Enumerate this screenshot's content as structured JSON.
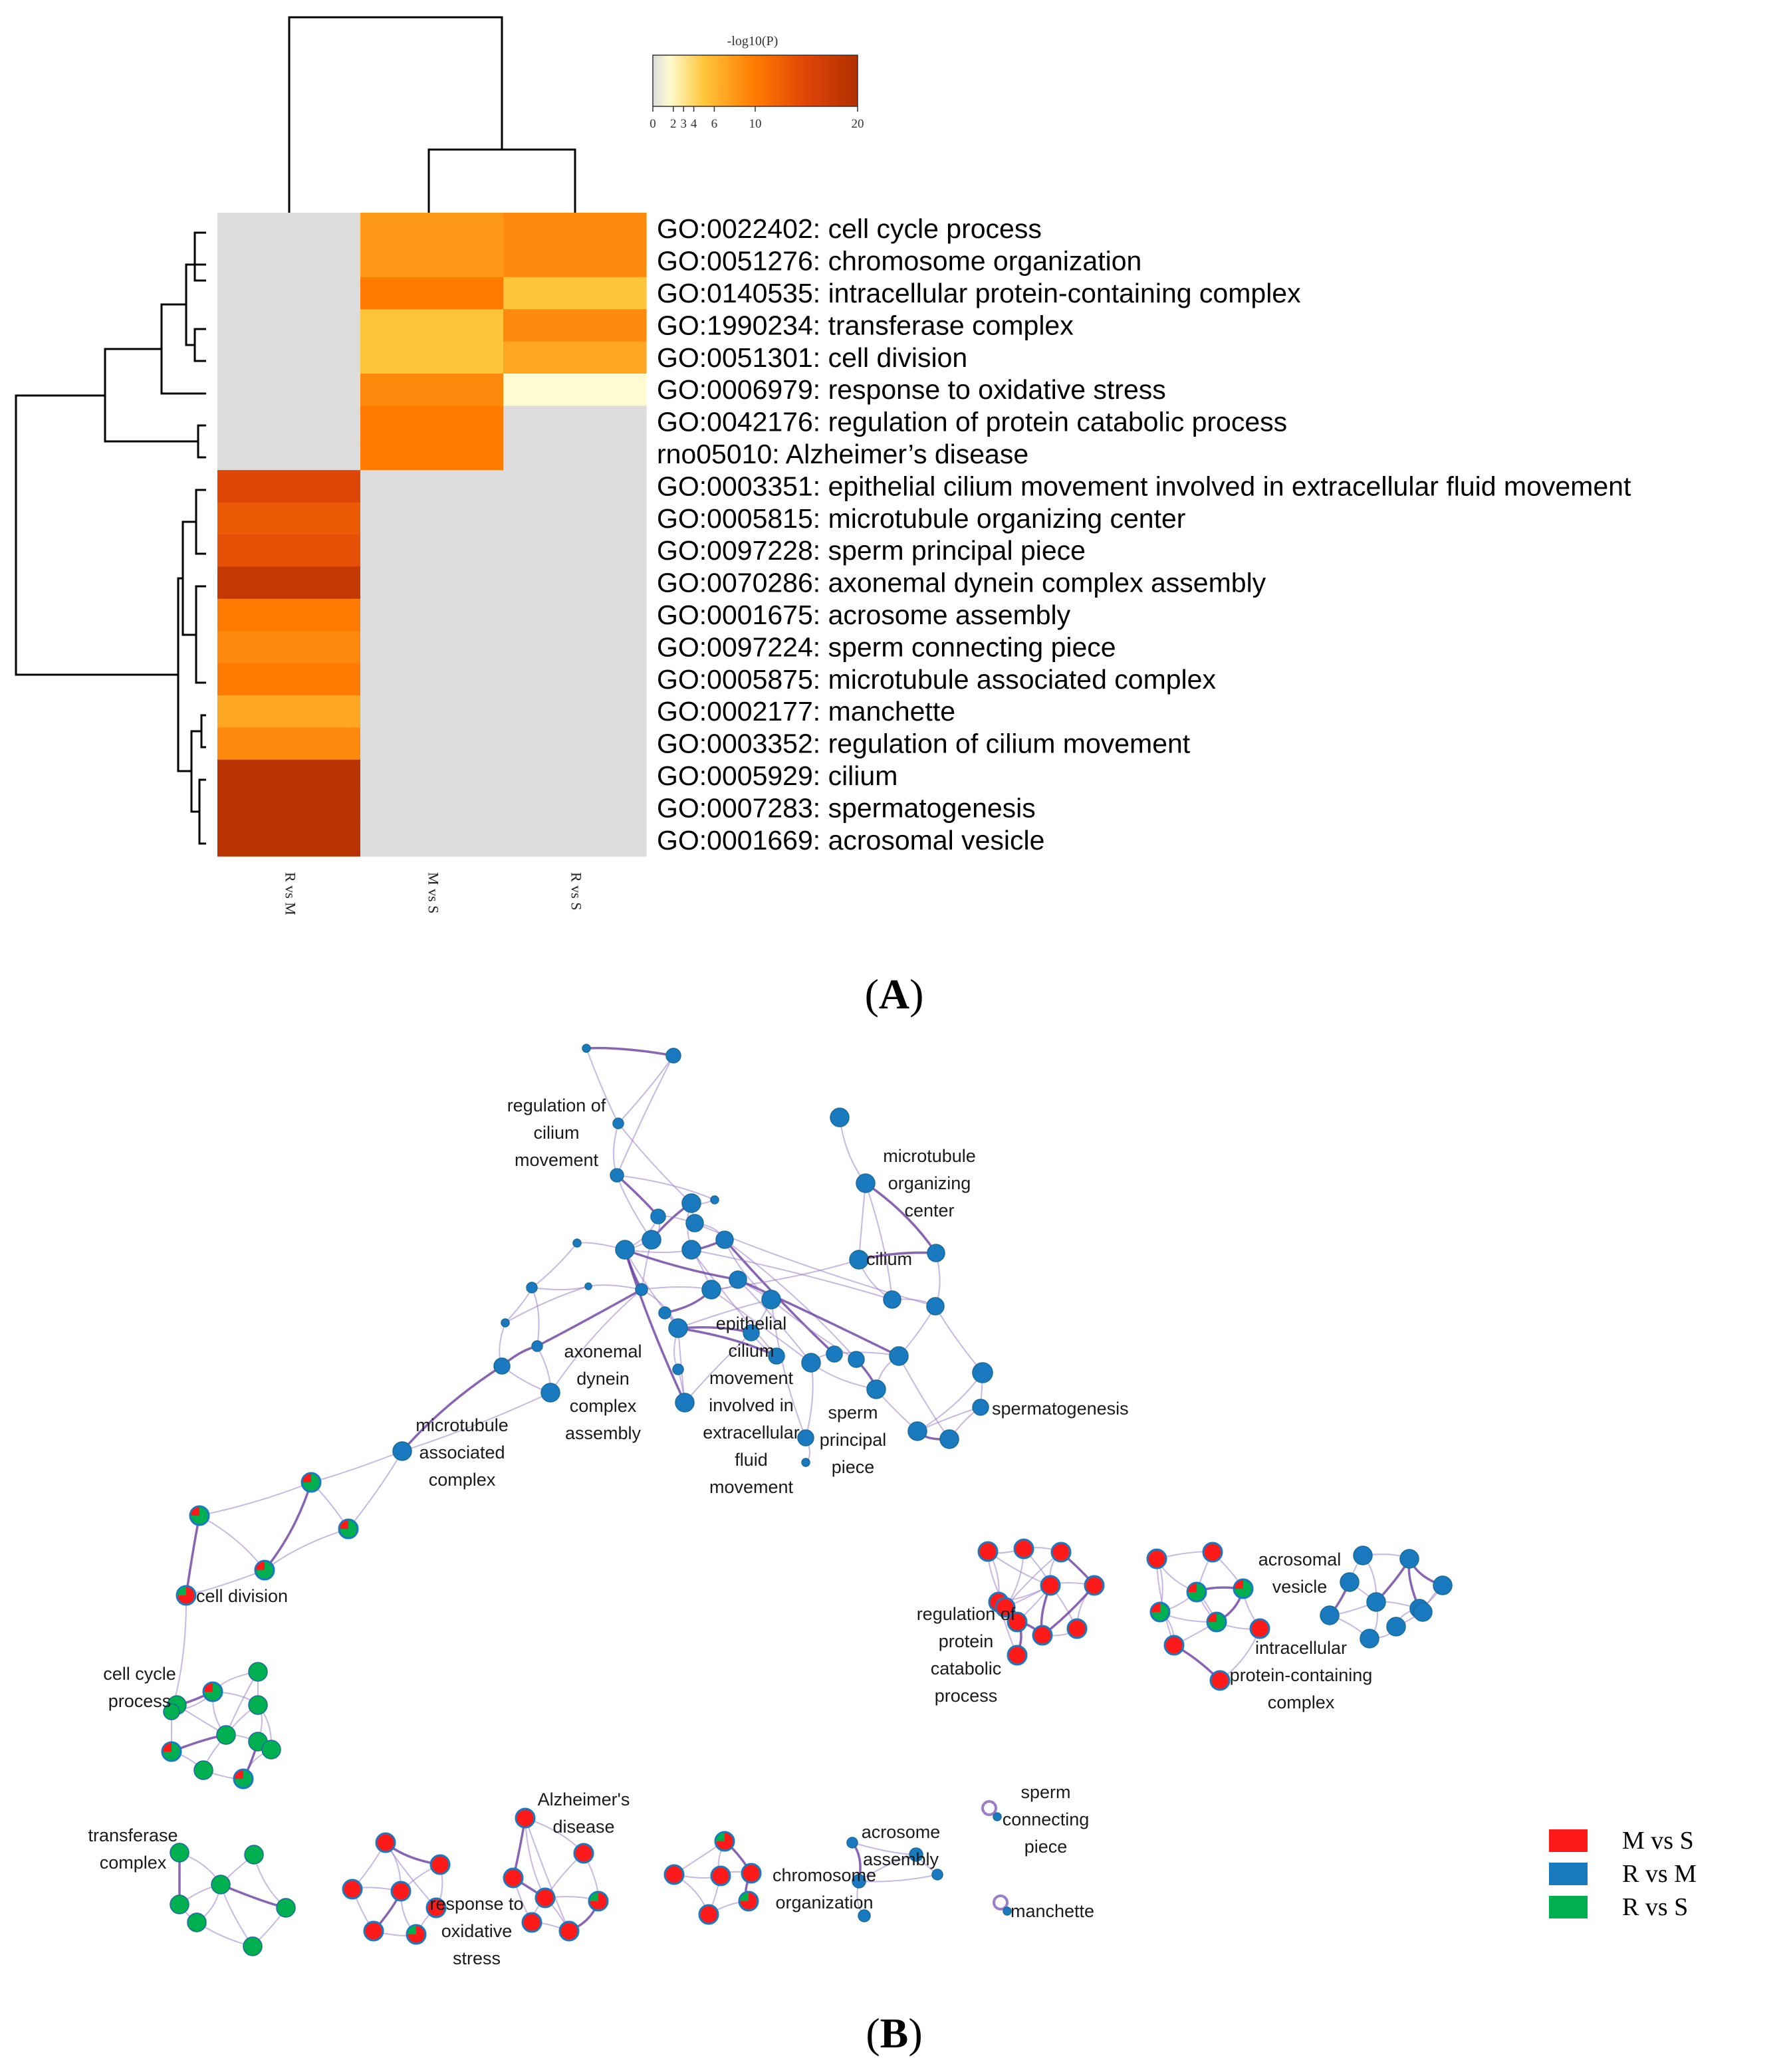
{
  "panels": {
    "a_label": "A",
    "b_label": "B"
  },
  "chart_data": [
    {
      "type": "heatmap",
      "title": "",
      "colorbar": {
        "title": "-log10(P)",
        "ticks": [
          "0",
          "2",
          "3",
          "4",
          "6",
          "10",
          "20"
        ],
        "range": [
          0,
          20
        ]
      },
      "columns": [
        "R vs M",
        "M vs S",
        "R vs S"
      ],
      "rows": [
        "GO:0022402: cell cycle process",
        "GO:0051276: chromosome organization",
        "GO:0140535: intracellular protein-containing complex",
        "GO:1990234: transferase complex",
        "GO:0051301: cell division",
        "GO:0006979: response to oxidative stress",
        "GO:0042176: regulation of protein catabolic process",
        "rno05010: Alzheimer’s disease",
        "GO:0003351: epithelial cilium movement involved in extracellular fluid movement",
        "GO:0005815: microtubule organizing center",
        "GO:0097228: sperm principal piece",
        "GO:0070286: axonemal dynein complex assembly",
        "GO:0001675: acrosome assembly",
        "GO:0097224: sperm connecting piece",
        "GO:0005875: microtubule associated complex",
        "GO:0002177: manchette",
        "GO:0003352: regulation of cilium movement",
        "GO:0005929: cilium",
        "GO:0007283: spermatogenesis",
        "GO:0001669: acrosomal vesicle"
      ],
      "values": [
        [
          null,
          8,
          9
        ],
        [
          null,
          8,
          9
        ],
        [
          null,
          10,
          5
        ],
        [
          null,
          5,
          9
        ],
        [
          null,
          5,
          7
        ],
        [
          null,
          9,
          1.5
        ],
        [
          null,
          10,
          null
        ],
        [
          null,
          10,
          null
        ],
        [
          15,
          null,
          null
        ],
        [
          13,
          null,
          null
        ],
        [
          14,
          null,
          null
        ],
        [
          18,
          null,
          null
        ],
        [
          10,
          null,
          null
        ],
        [
          9,
          null,
          null
        ],
        [
          10,
          null,
          null
        ],
        [
          7,
          null,
          null
        ],
        [
          9,
          null,
          null
        ],
        [
          19,
          null,
          null
        ],
        [
          19,
          null,
          null
        ],
        [
          19,
          null,
          null
        ]
      ],
      "missing_color": "#dcdcdc",
      "row_dendrogram": true,
      "column_dendrogram": true
    },
    {
      "type": "network",
      "legend": [
        {
          "label": "M vs S",
          "color": "#ff1a1a"
        },
        {
          "label": "R vs M",
          "color": "#1a7abf"
        },
        {
          "label": "R vs S",
          "color": "#00b050"
        }
      ],
      "cluster_labels": [
        {
          "id": "reg-cilium",
          "lines": [
            "regulation of",
            "cilium",
            "movement"
          ]
        },
        {
          "id": "mtoc",
          "lines": [
            "microtubule",
            "organizing",
            "center"
          ]
        },
        {
          "id": "cilium",
          "lines": [
            "cilium"
          ]
        },
        {
          "id": "epithelial",
          "lines": [
            "epithelial",
            "cilium",
            "movement",
            "involved in",
            "extracellular",
            "fluid",
            "movement"
          ]
        },
        {
          "id": "axonemal",
          "lines": [
            "axonemal",
            "dynein",
            "complex",
            "assembly"
          ]
        },
        {
          "id": "spermatogenesis",
          "lines": [
            "spermatogenesis"
          ]
        },
        {
          "id": "principal",
          "lines": [
            "sperm",
            "principal",
            "piece"
          ]
        },
        {
          "id": "mt-assoc",
          "lines": [
            "microtubule",
            "associated",
            "complex"
          ]
        },
        {
          "id": "cell-division",
          "lines": [
            "cell division"
          ]
        },
        {
          "id": "cell-cycle",
          "lines": [
            "cell cycle",
            "process"
          ]
        },
        {
          "id": "reg-protein",
          "lines": [
            "regulation of",
            "protein",
            "catabolic",
            "process"
          ]
        },
        {
          "id": "acrosomal",
          "lines": [
            "acrosomal",
            "vesicle"
          ]
        },
        {
          "id": "intracellular",
          "lines": [
            "intracellular",
            "protein-containing",
            "complex"
          ]
        },
        {
          "id": "transferase",
          "lines": [
            "transferase",
            "complex"
          ]
        },
        {
          "id": "alzheimer",
          "lines": [
            "Alzheimer's",
            "disease"
          ]
        },
        {
          "id": "oxidative",
          "lines": [
            "response to",
            "oxidative",
            "stress"
          ]
        },
        {
          "id": "chromosome",
          "lines": [
            "chromosome",
            "organization"
          ]
        },
        {
          "id": "acrosome",
          "lines": [
            "acrosome",
            "assembly"
          ]
        },
        {
          "id": "connecting",
          "lines": [
            "sperm",
            "connecting",
            "piece"
          ]
        },
        {
          "id": "manchette",
          "lines": [
            "manchette"
          ]
        }
      ]
    }
  ]
}
